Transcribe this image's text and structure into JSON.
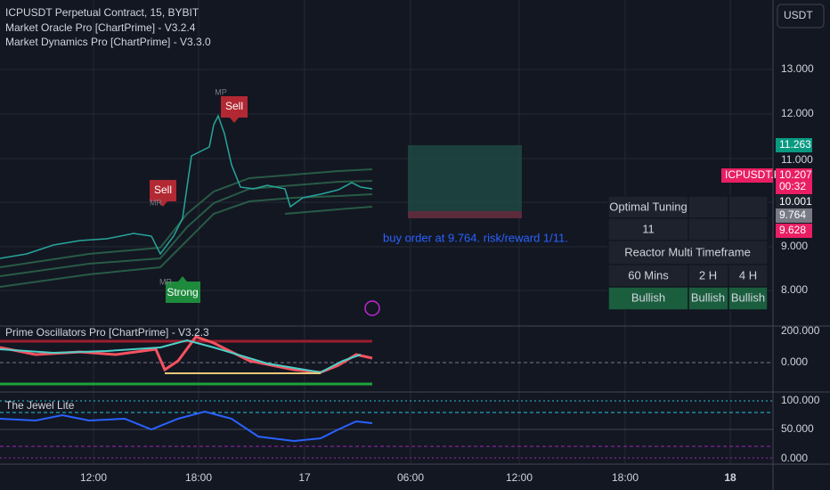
{
  "header": {
    "symbol": "ICPUSDT Perpetual Contract, 15, BYBIT",
    "indicators": [
      "Market Oracle Pro [ChartPrime] - V3.2.4",
      "Market Dynamics Pro [ChartPrime] - V3.3.0"
    ],
    "currency": "USDT"
  },
  "price_axis": [
    "13.000",
    "12.000",
    "11.000",
    "9.000",
    "8.000"
  ],
  "badges": {
    "target": "11.263",
    "symbol": "ICPUSDT.P",
    "last": "10.207",
    "countdown": "00:32",
    "level": "10.001",
    "entry": "9.764",
    "stop": "9.628"
  },
  "signals": {
    "sell_1": "Sell",
    "sell_2": "Sell",
    "strong": "Strong",
    "mp_1": "MP",
    "mr_1": "MR",
    "mr_2": "MR"
  },
  "annotation": "buy order at 9.764. risk/reward 1/11.",
  "table": {
    "tuning_label": "Optimal Tuning",
    "tuning_value": "11",
    "mtf_title": "Reactor Multi Timeframe",
    "timeframes": [
      "60 Mins",
      "2 H",
      "4 H"
    ],
    "trends": [
      "Bullish",
      "Bullish",
      "Bullish"
    ]
  },
  "oscillator": {
    "title": "Prime Oscillators Pro [ChartPrime] - V3.2.3",
    "axis": [
      "200.000",
      "0.000"
    ]
  },
  "jewel": {
    "title": "The Jewel Lite",
    "axis": [
      "100.000",
      "50.000",
      "0.000"
    ]
  },
  "time_axis": [
    "12:00",
    "18:00",
    "17",
    "06:00",
    "12:00",
    "18:00",
    "18"
  ]
}
